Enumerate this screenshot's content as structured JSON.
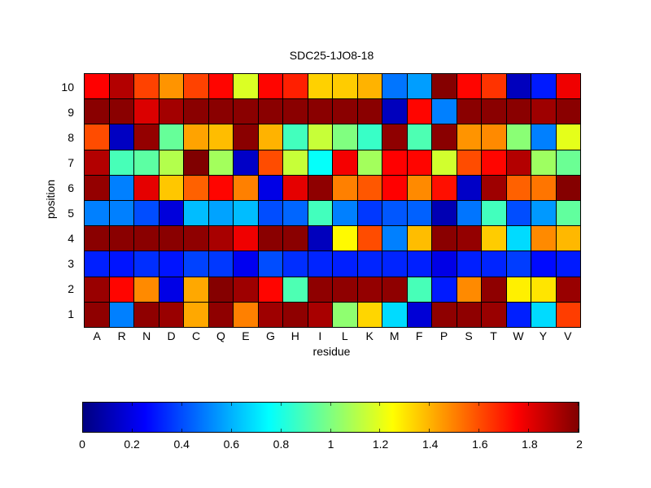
{
  "chart_data": {
    "type": "heatmap",
    "title": "SDC25-1JO8-18",
    "xlabel": "residue",
    "ylabel": "position",
    "colormap": "jet",
    "value_range": [
      0,
      2
    ],
    "grid": "on",
    "x_categories": [
      "A",
      "R",
      "N",
      "D",
      "C",
      "Q",
      "E",
      "G",
      "H",
      "I",
      "L",
      "K",
      "M",
      "F",
      "P",
      "S",
      "T",
      "W",
      "Y",
      "V"
    ],
    "y_categories_top_to_bottom": [
      "10",
      "9",
      "8",
      "7",
      "6",
      "5",
      "4",
      "3",
      "2",
      "1"
    ],
    "rows_top_to_bottom": [
      [
        1.75,
        1.9,
        1.62,
        1.46,
        1.62,
        1.74,
        1.18,
        1.74,
        1.69,
        1.34,
        1.35,
        1.4,
        0.48,
        0.56,
        1.99,
        1.74,
        1.65,
        0.12,
        0.3,
        1.78
      ],
      [
        1.98,
        1.98,
        1.82,
        1.93,
        1.98,
        1.98,
        1.98,
        1.98,
        1.98,
        1.98,
        1.98,
        1.98,
        0.12,
        1.74,
        0.5,
        1.98,
        1.98,
        1.98,
        1.94,
        1.98
      ],
      [
        1.6,
        0.13,
        1.96,
        0.95,
        1.43,
        1.38,
        1.98,
        1.4,
        0.88,
        1.14,
        1.0,
        0.86,
        1.97,
        0.9,
        1.98,
        1.46,
        1.48,
        1.02,
        0.5,
        1.2
      ],
      [
        1.9,
        0.89,
        0.93,
        1.1,
        2.0,
        1.07,
        0.14,
        1.6,
        1.14,
        0.76,
        1.77,
        1.07,
        1.75,
        1.74,
        1.16,
        1.6,
        1.74,
        1.9,
        1.06,
        0.96
      ],
      [
        1.96,
        0.5,
        1.8,
        1.36,
        1.56,
        1.74,
        1.5,
        0.2,
        1.8,
        1.97,
        1.5,
        1.58,
        1.75,
        1.48,
        1.72,
        0.14,
        1.94,
        1.56,
        1.52,
        1.99
      ],
      [
        0.5,
        0.5,
        0.4,
        0.18,
        0.62,
        0.57,
        0.62,
        0.4,
        0.45,
        0.88,
        0.5,
        0.36,
        0.42,
        0.44,
        0.1,
        0.48,
        0.88,
        0.4,
        0.55,
        0.94
      ],
      [
        1.98,
        1.98,
        1.98,
        1.98,
        1.97,
        1.92,
        1.78,
        1.98,
        1.98,
        0.12,
        1.26,
        1.6,
        0.5,
        1.38,
        1.98,
        1.96,
        1.35,
        0.68,
        1.48,
        1.39
      ],
      [
        0.31,
        0.29,
        0.34,
        0.29,
        0.38,
        0.36,
        0.22,
        0.4,
        0.34,
        0.32,
        0.31,
        0.32,
        0.32,
        0.31,
        0.2,
        0.31,
        0.32,
        0.37,
        0.27,
        0.3
      ],
      [
        1.95,
        1.74,
        1.48,
        0.2,
        1.42,
        1.99,
        1.94,
        1.74,
        0.9,
        1.97,
        1.97,
        1.96,
        1.97,
        0.89,
        0.3,
        1.48,
        1.97,
        1.28,
        1.3,
        1.95
      ],
      [
        1.97,
        0.5,
        1.97,
        1.95,
        1.42,
        1.97,
        1.5,
        1.94,
        1.97,
        1.92,
        1.03,
        1.33,
        0.68,
        0.17,
        1.97,
        1.97,
        1.95,
        0.31,
        0.68,
        1.63
      ]
    ],
    "colorbar": {
      "orientation": "horizontal",
      "tick_labels": [
        "0",
        "0.2",
        "0.4",
        "0.6",
        "0.8",
        "1",
        "1.2",
        "1.4",
        "1.6",
        "1.8",
        "2"
      ],
      "tick_values": [
        0,
        0.2,
        0.4,
        0.6,
        0.8,
        1,
        1.2,
        1.4,
        1.6,
        1.8,
        2
      ]
    }
  }
}
